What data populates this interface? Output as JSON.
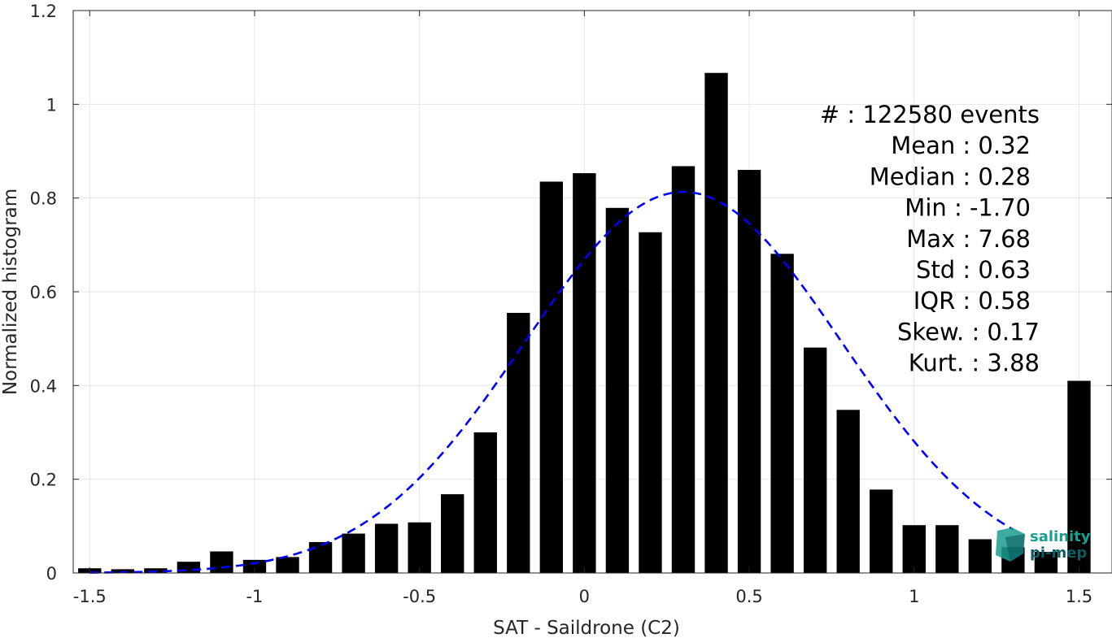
{
  "chart_data": {
    "type": "bar",
    "xlabel": "SAT - Saildrone (C2)",
    "ylabel": "Normalized histogram",
    "xlim": [
      -1.55,
      1.6
    ],
    "ylim": [
      0,
      1.2
    ],
    "xticks": [
      -1.5,
      -1,
      -0.5,
      0,
      0.5,
      1,
      1.5
    ],
    "xtick_labels": [
      "-1.5",
      "-1",
      "-0.5",
      "0",
      "0.5",
      "1",
      "1.5"
    ],
    "yticks": [
      0,
      0.2,
      0.4,
      0.6,
      0.8,
      1,
      1.2
    ],
    "ytick_labels": [
      "0",
      "0.2",
      "0.4",
      "0.6",
      "0.8",
      "1",
      "1.2"
    ],
    "grid": true,
    "bar_color": "#000000",
    "bar_width": 0.07,
    "x": [
      -1.5,
      -1.4,
      -1.3,
      -1.2,
      -1.1,
      -1.0,
      -0.9,
      -0.8,
      -0.7,
      -0.6,
      -0.5,
      -0.4,
      -0.3,
      -0.2,
      -0.1,
      0.0,
      0.1,
      0.2,
      0.3,
      0.4,
      0.5,
      0.6,
      0.7,
      0.8,
      0.9,
      1.0,
      1.1,
      1.2,
      1.3,
      1.4,
      1.5
    ],
    "values": [
      0.01,
      0.008,
      0.01,
      0.024,
      0.046,
      0.028,
      0.034,
      0.066,
      0.084,
      0.105,
      0.108,
      0.168,
      0.3,
      0.555,
      0.835,
      0.853,
      0.779,
      0.727,
      0.868,
      1.067,
      0.86,
      0.681,
      0.481,
      0.348,
      0.178,
      0.102,
      0.102,
      0.072,
      0.055,
      0.045,
      0.41
    ],
    "fit": {
      "type": "normal",
      "mean": 0.3,
      "peak": 0.813,
      "std": 0.48,
      "x_range": [
        -1.5,
        1.3
      ],
      "color": "#0000ff",
      "style": "dashed"
    },
    "stats": [
      {
        "label": "#  : 122580 events"
      },
      {
        "label": "Mean : 0.32"
      },
      {
        "label": "Median : 0.28"
      },
      {
        "label": "Min : -1.70"
      },
      {
        "label": "Max : 7.68"
      },
      {
        "label": "Std : 0.63"
      },
      {
        "label": "IQR : 0.58"
      },
      {
        "label": "Skew. : 0.17"
      },
      {
        "label": "Kurt. : 3.88"
      }
    ]
  },
  "logo": {
    "line1": "salinity",
    "line2": "pi-mep",
    "color_primary": "#1a9e8f",
    "color_secondary": "#0d5c63"
  }
}
